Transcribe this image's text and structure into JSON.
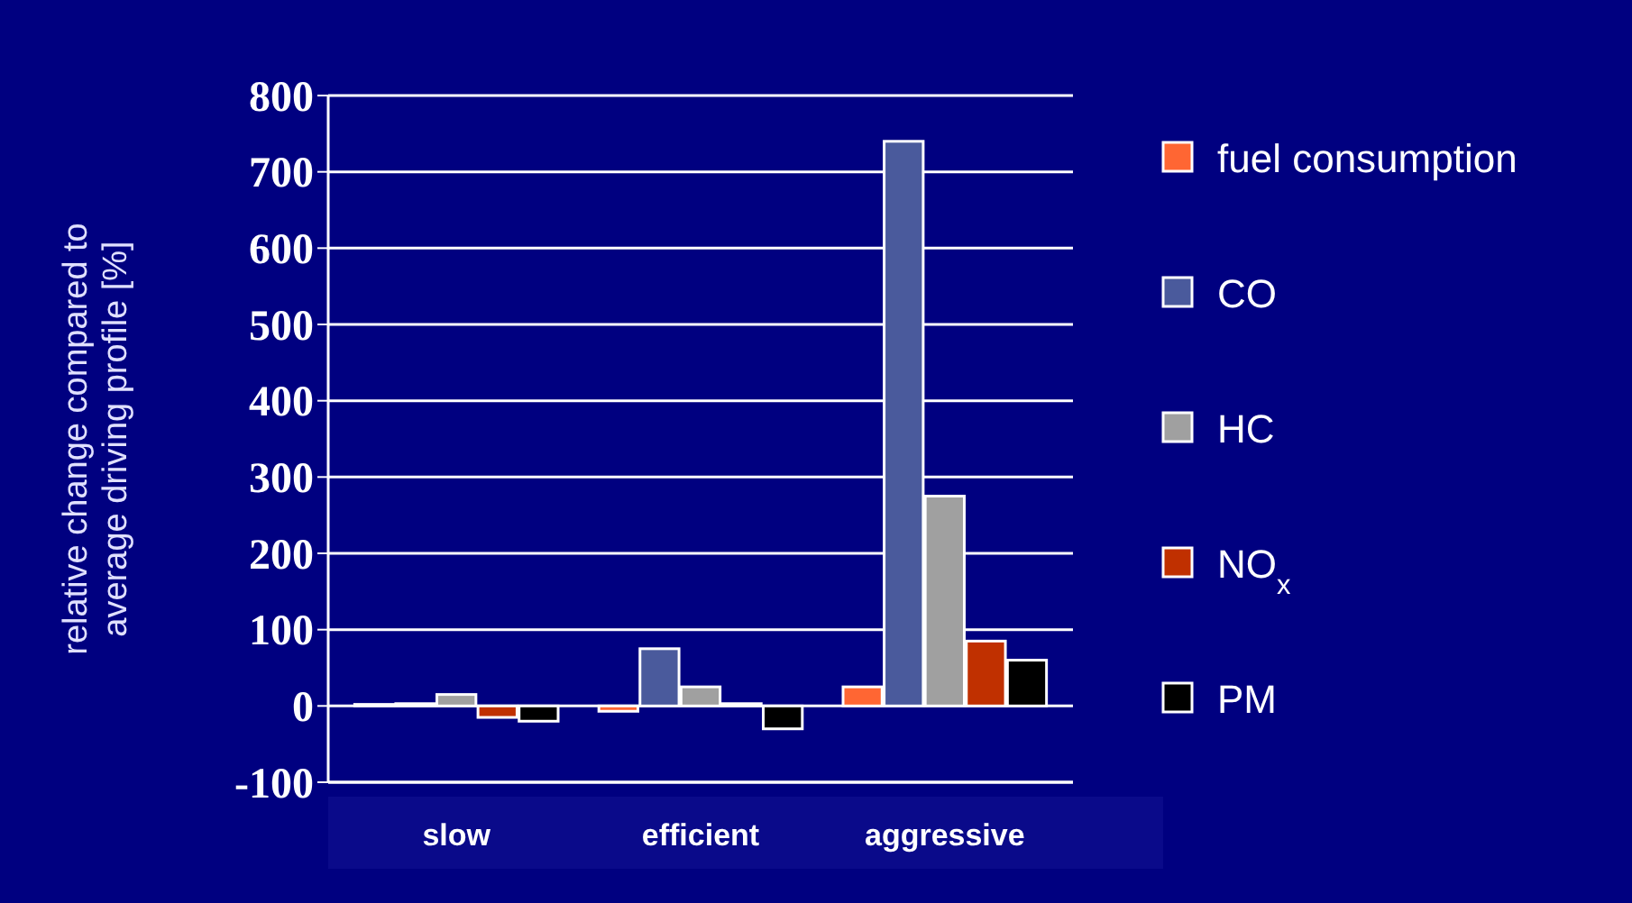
{
  "chart_data": {
    "type": "bar",
    "ylabel": "relative change compared to average driving profile [%]",
    "categories": [
      "slow",
      "efficient",
      "aggressive"
    ],
    "series": [
      {
        "name": "fuel consumption",
        "color": "#ff6633",
        "values": [
          2,
          -7,
          25
        ]
      },
      {
        "name": "CO",
        "color": "#4a5a9c",
        "values": [
          3,
          75,
          740
        ]
      },
      {
        "name": "HC",
        "color": "#a0a0a0",
        "values": [
          15,
          25,
          275
        ]
      },
      {
        "name": "NO$_{x}$",
        "color": "#c03000",
        "values": [
          -15,
          3,
          85
        ]
      },
      {
        "name": "PM",
        "color": "#000000",
        "values": [
          -20,
          -30,
          60
        ]
      }
    ],
    "ylim": [
      -100,
      800
    ],
    "yticks": [
      -100,
      0,
      100,
      200,
      300,
      400,
      500,
      600,
      700,
      800
    ],
    "grid": "y",
    "legend": "right"
  }
}
